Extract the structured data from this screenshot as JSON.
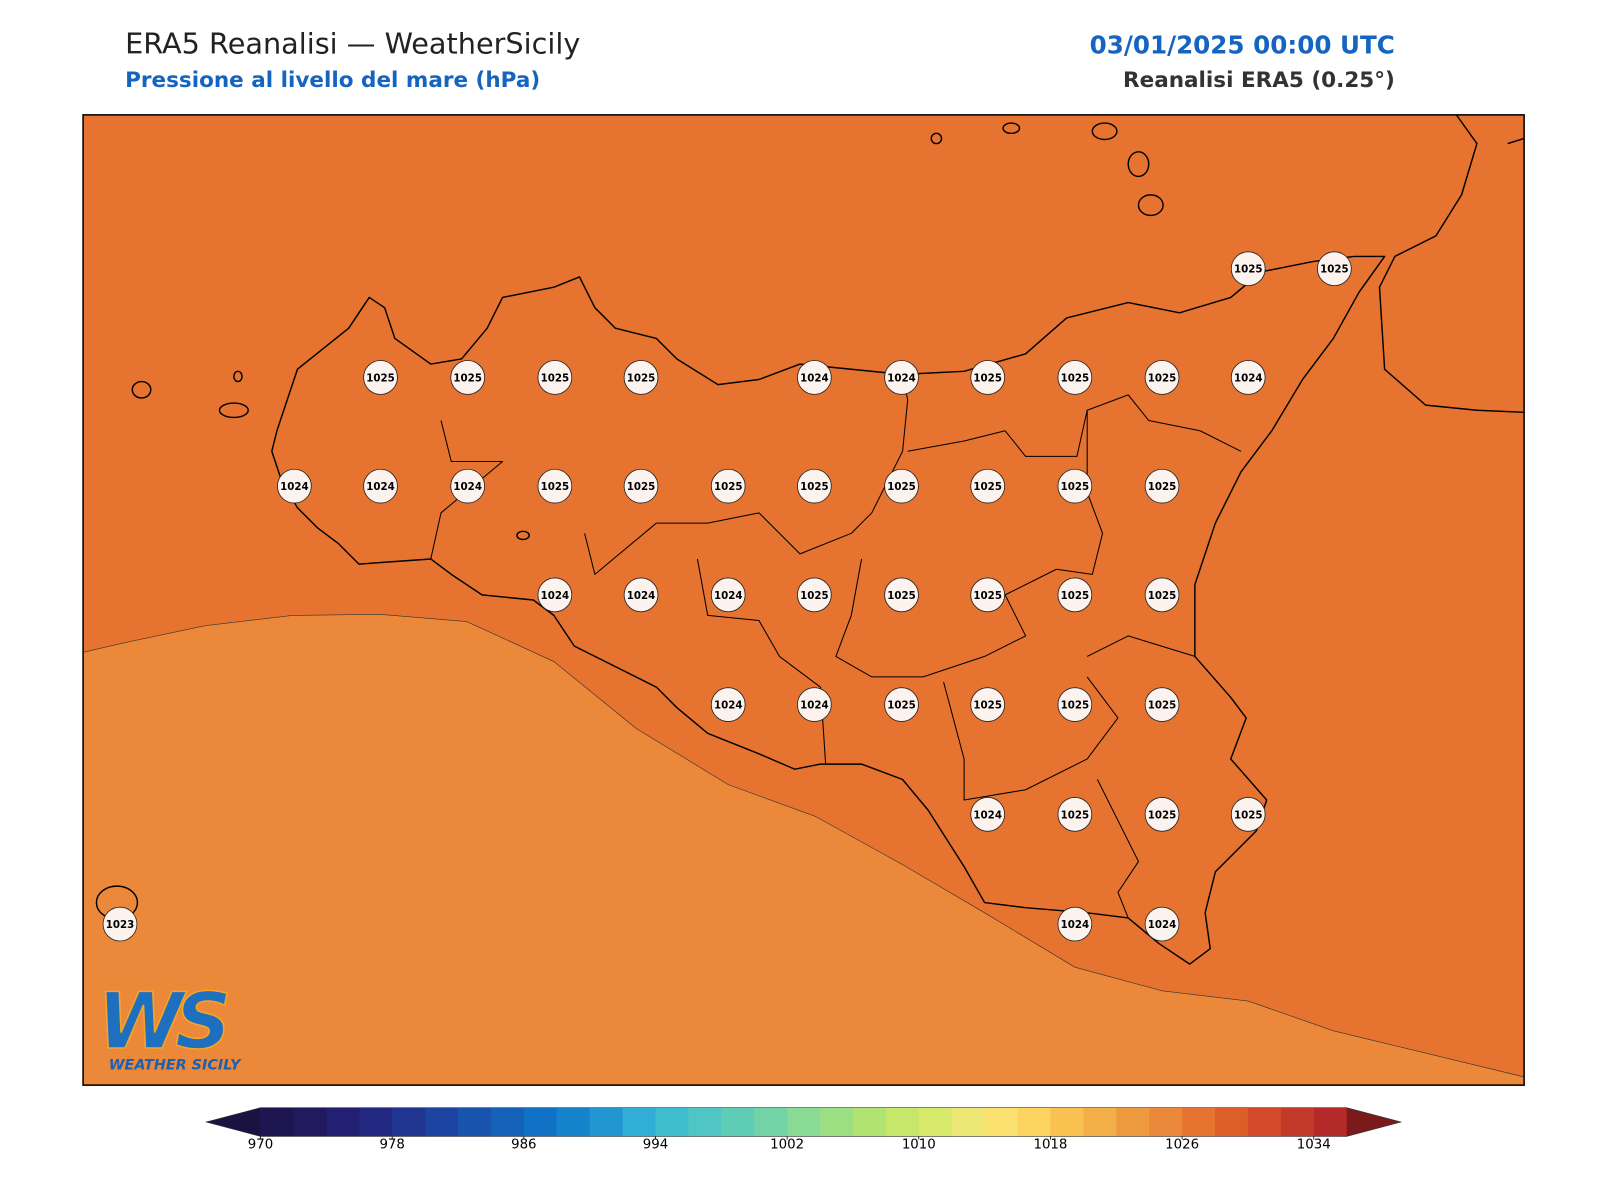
{
  "header": {
    "title": "ERA5 Reanalisi — WeatherSicily",
    "subtitle": "Pressione al livello del mare (hPa)",
    "datetime": "03/01/2025 00:00 UTC",
    "source": "Reanalisi ERA5 (0.25°)"
  },
  "stations": [
    1025,
    1025,
    1025,
    1025,
    1025,
    1025,
    1024,
    1024,
    1025,
    1025,
    1025,
    1024,
    1024,
    1024,
    1024,
    1025,
    1025,
    1025,
    1025,
    1025,
    1025,
    1025,
    1025,
    1024,
    1024,
    1024,
    1025,
    1025,
    1025,
    1025,
    1025,
    1024,
    1024,
    1025,
    1025,
    1025,
    1025,
    1024,
    1025,
    1025,
    1025,
    1023,
    1024,
    1024
  ],
  "colorbar": {
    "lim": [
      970,
      1036
    ],
    "ticks": [
      970,
      978,
      986,
      994,
      1002,
      1010,
      1018,
      1026,
      1034
    ],
    "colors": [
      "#1e1650",
      "#221a5e",
      "#231f72",
      "#22287f",
      "#1f3590",
      "#1c44a0",
      "#1853ae",
      "#1462b9",
      "#0f72c4",
      "#1583cc",
      "#2296d1",
      "#30aed6",
      "#3fbecf",
      "#4fc6c4",
      "#5fcdb6",
      "#72d4a6",
      "#88da94",
      "#9cdf83",
      "#b1e373",
      "#c6e769",
      "#d8ea6b",
      "#ede775",
      "#fbe170",
      "#fdd35f",
      "#f9c150",
      "#f4ae48",
      "#ee9b40",
      "#ec883a",
      "#e6732f",
      "#dd5e29",
      "#d24a2a",
      "#c43a2a",
      "#b42a28"
    ],
    "under_color": "#1a1240",
    "over_color": "#7a1a1a"
  },
  "logo": {
    "letters": "WS",
    "caption": "WEATHER SICILY"
  }
}
